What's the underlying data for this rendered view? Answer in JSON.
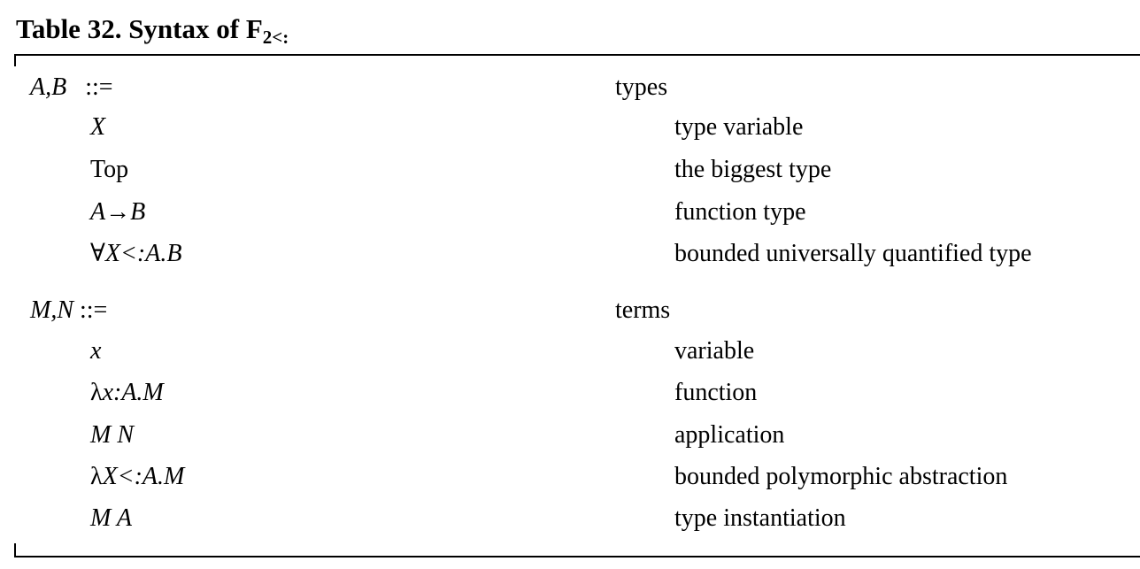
{
  "table": {
    "title_main": "Table 32. Syntax of F",
    "title_subscript": "2<:",
    "groups": [
      {
        "head": {
          "prefix": "A,B",
          "op": "::=",
          "category": "types"
        },
        "rows": [
          {
            "sym_prefix": "",
            "term": "X",
            "desc": "type variable"
          },
          {
            "sym_prefix": "",
            "term": "Top",
            "desc": "the biggest type"
          },
          {
            "sym_prefix": "",
            "term": "A→B",
            "desc": "function type"
          },
          {
            "sym_prefix": "∀",
            "term": "X<:A.B",
            "desc": "bounded universally quantified type"
          }
        ]
      },
      {
        "head": {
          "prefix": "M,N",
          "op": "::=",
          "category": "terms"
        },
        "rows": [
          {
            "sym_prefix": "",
            "term": "x",
            "desc": "variable"
          },
          {
            "sym_prefix": "λ",
            "term": "x:A.M",
            "desc": "function"
          },
          {
            "sym_prefix": "",
            "term": "M N",
            "desc": "application"
          },
          {
            "sym_prefix": "λ",
            "term": "X<:A.M",
            "desc": "bounded polymorphic abstraction"
          },
          {
            "sym_prefix": "",
            "term": "M A",
            "desc": "type instantiation"
          }
        ]
      }
    ]
  }
}
